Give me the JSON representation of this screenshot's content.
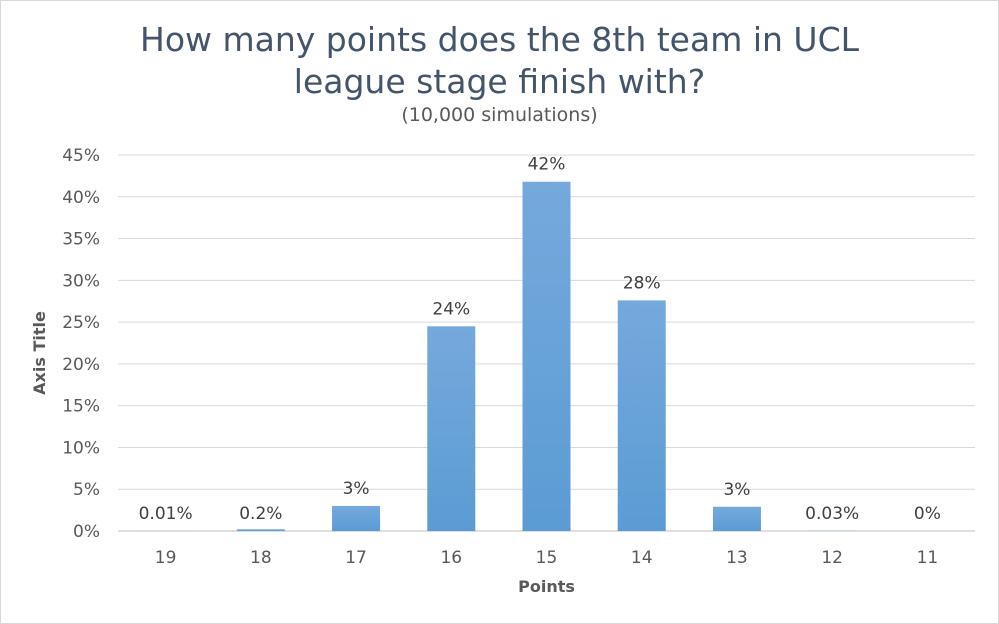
{
  "chart_data": {
    "type": "bar",
    "title_line1": "How many points does the 8th team in UCL",
    "title_line2": "league stage finish with?",
    "subtitle": "(10,000 simulations)",
    "xlabel": "Points",
    "ylabel": "Axis Title",
    "categories": [
      "19",
      "18",
      "17",
      "16",
      "15",
      "14",
      "13",
      "12",
      "11"
    ],
    "values": [
      0.01,
      0.2,
      3,
      24.5,
      41.8,
      27.6,
      2.9,
      0.03,
      0
    ],
    "data_labels": [
      "0.01%",
      "0.2%",
      "3%",
      "24%",
      "42%",
      "28%",
      "3%",
      "0.03%",
      "0%"
    ],
    "ylim": [
      0,
      45
    ],
    "yticks": [
      "0%",
      "5%",
      "10%",
      "15%",
      "20%",
      "25%",
      "30%",
      "35%",
      "40%",
      "45%"
    ],
    "grid": true,
    "bar_color": "#5b9bd5",
    "bar_color_light": "#75a9dc"
  }
}
